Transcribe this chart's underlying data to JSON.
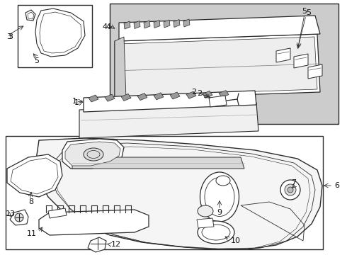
{
  "bg_color": "#ffffff",
  "line_color": "#2a2a2a",
  "shade_color": "#cccccc",
  "fig_width": 4.9,
  "fig_height": 3.6,
  "dpi": 100
}
